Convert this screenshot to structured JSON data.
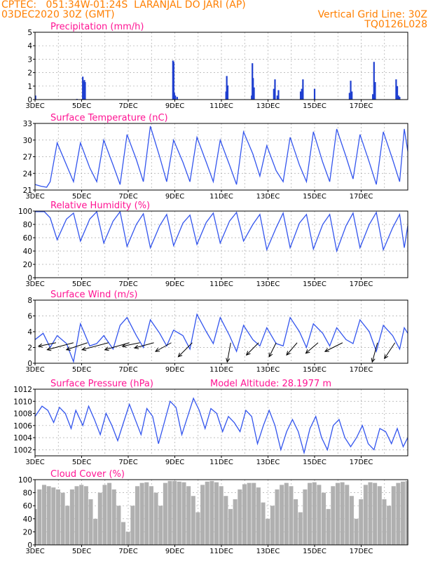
{
  "header": {
    "line1_left": "CPTEC:   051:34W-01:24S  LARANJAL DO JARI (AP)",
    "line2_left": "03DEC2020 30Z (GMT)",
    "line2_right": "Vertical Grid Line: 30Z",
    "line3_right": "TQ0126L028"
  },
  "colors": {
    "header": "#ff7f00",
    "panel_title": "#ff1493",
    "line": "#3355ee",
    "precip_bar": "#1f3fd0",
    "wind_arrow": "#000000",
    "cloud_fill": "#b0b0b0",
    "grid": "#aaaaaa"
  },
  "chart_data": [
    {
      "id": "precipitation",
      "type": "bar",
      "title": "Precipitation (mm/h)",
      "ylim": [
        0,
        5
      ],
      "yticks": [
        0,
        1,
        2,
        3,
        4,
        5
      ],
      "xlim": [
        0,
        16
      ],
      "xtick_labels": [
        "3DEC",
        "5DEC",
        "7DEC",
        "9DEC",
        "11DEC",
        "13DEC",
        "15DEC",
        "17DEC"
      ],
      "x": [
        0.02,
        1.8,
        2.05,
        2.08,
        2.12,
        2.15,
        5.92,
        5.95,
        5.98,
        6.02,
        6.1,
        8.2,
        8.23,
        8.27,
        9.3,
        9.33,
        9.36,
        9.4,
        10.25,
        10.3,
        10.4,
        10.45,
        11.4,
        11.45,
        11.5,
        12.0,
        13.5,
        13.55,
        13.6,
        14.5,
        14.55,
        14.6,
        15.5,
        15.55,
        15.6,
        15.65
      ],
      "values": [
        0.3,
        0.05,
        1.7,
        1.35,
        1.45,
        1.3,
        2.9,
        2.8,
        0.5,
        0.3,
        0.2,
        0.6,
        1.75,
        1.05,
        0.3,
        2.7,
        1.6,
        0.9,
        0.8,
        1.5,
        0.3,
        0.7,
        0.6,
        0.8,
        1.5,
        0.8,
        0.5,
        1.4,
        0.6,
        0.4,
        2.8,
        1.3,
        1.5,
        1.0,
        0.3,
        0.2
      ]
    },
    {
      "id": "temperature",
      "type": "line",
      "title": "Surface Temperature (nC)",
      "ylim": [
        21,
        33
      ],
      "yticks": [
        21,
        24,
        27,
        30,
        33
      ],
      "xlim": [
        0,
        16
      ],
      "xtick_labels": [
        "3DEC",
        "5DEC",
        "7DEC",
        "9DEC",
        "11DEC",
        "13DEC",
        "15DEC",
        "17DEC"
      ],
      "x": [
        0,
        0.25,
        0.5,
        0.65,
        0.95,
        1.35,
        1.65,
        1.95,
        2.35,
        2.65,
        2.95,
        3.35,
        3.65,
        3.95,
        4.35,
        4.65,
        4.95,
        5.35,
        5.65,
        5.95,
        6.35,
        6.65,
        6.95,
        7.35,
        7.65,
        7.95,
        8.35,
        8.65,
        8.95,
        9.35,
        9.65,
        9.95,
        10.35,
        10.65,
        10.95,
        11.35,
        11.65,
        11.95,
        12.35,
        12.65,
        12.95,
        13.35,
        13.65,
        13.95,
        14.35,
        14.65,
        14.95,
        15.35,
        15.65,
        15.85,
        16
      ],
      "values": [
        22.0,
        21.7,
        21.5,
        22.5,
        29.5,
        25.5,
        22.5,
        29.5,
        25.0,
        22.5,
        30.0,
        25.5,
        22.0,
        31.0,
        26.5,
        22.5,
        32.5,
        27.0,
        22.5,
        30.0,
        26.0,
        22.5,
        30.5,
        26.0,
        22.5,
        30.0,
        25.5,
        22.0,
        31.5,
        27.5,
        23.5,
        29.0,
        24.5,
        22.5,
        30.5,
        25.5,
        22.5,
        31.5,
        26.0,
        22.5,
        32.0,
        27.0,
        23.0,
        31.0,
        26.0,
        22.0,
        31.5,
        26.5,
        22.5,
        32.0,
        28.0
      ]
    },
    {
      "id": "humidity",
      "type": "line",
      "title": "Relative Humidity (%)",
      "ylim": [
        0,
        100
      ],
      "yticks": [
        0,
        20,
        40,
        60,
        80,
        100
      ],
      "xlim": [
        0,
        16
      ],
      "xtick_labels": [
        "3DEC",
        "5DEC",
        "7DEC",
        "9DEC",
        "11DEC",
        "13DEC",
        "15DEC",
        "17DEC"
      ],
      "x": [
        0,
        0.4,
        0.65,
        0.95,
        1.35,
        1.65,
        1.95,
        2.35,
        2.65,
        2.95,
        3.35,
        3.65,
        3.95,
        4.35,
        4.65,
        4.95,
        5.35,
        5.65,
        5.95,
        6.35,
        6.65,
        6.95,
        7.35,
        7.65,
        7.95,
        8.35,
        8.65,
        8.95,
        9.35,
        9.65,
        9.95,
        10.35,
        10.65,
        10.95,
        11.35,
        11.65,
        11.95,
        12.35,
        12.65,
        12.95,
        13.35,
        13.65,
        13.95,
        14.35,
        14.65,
        14.95,
        15.35,
        15.65,
        15.85,
        16
      ],
      "values": [
        99,
        99,
        90,
        57,
        88,
        97,
        55,
        88,
        99,
        52,
        85,
        99,
        47,
        80,
        96,
        45,
        78,
        95,
        48,
        82,
        94,
        50,
        83,
        97,
        52,
        85,
        98,
        55,
        80,
        95,
        42,
        75,
        97,
        45,
        82,
        95,
        43,
        80,
        95,
        40,
        78,
        97,
        45,
        80,
        98,
        42,
        75,
        95,
        45,
        78
      ]
    },
    {
      "id": "wind",
      "type": "line",
      "title": "Surface Wind (m/s)",
      "ylim": [
        0,
        8
      ],
      "yticks": [
        0,
        2,
        4,
        6,
        8
      ],
      "xlim": [
        0,
        16
      ],
      "xtick_labels": [
        "3DEC",
        "5DEC",
        "7DEC",
        "9DEC",
        "11DEC",
        "13DEC",
        "15DEC",
        "17DEC"
      ],
      "x": [
        0,
        0.35,
        0.65,
        0.95,
        1.35,
        1.65,
        1.95,
        2.35,
        2.65,
        2.95,
        3.35,
        3.65,
        3.95,
        4.35,
        4.65,
        4.95,
        5.35,
        5.65,
        5.95,
        6.35,
        6.65,
        6.95,
        7.35,
        7.65,
        7.95,
        8.35,
        8.65,
        8.95,
        9.35,
        9.65,
        9.95,
        10.35,
        10.65,
        10.95,
        11.35,
        11.65,
        11.95,
        12.35,
        12.65,
        12.95,
        13.35,
        13.65,
        13.95,
        14.35,
        14.65,
        14.95,
        15.35,
        15.65,
        15.85,
        16
      ],
      "values": [
        3.0,
        3.8,
        2.0,
        3.5,
        2.5,
        0.2,
        5.0,
        2.2,
        2.5,
        3.5,
        1.8,
        4.8,
        5.8,
        3.5,
        2.0,
        5.5,
        3.8,
        2.2,
        4.2,
        3.5,
        1.8,
        6.2,
        4.0,
        2.5,
        5.8,
        3.5,
        1.5,
        4.8,
        3.0,
        2.2,
        4.5,
        2.5,
        2.2,
        5.8,
        4.0,
        2.0,
        5.0,
        3.8,
        2.2,
        4.5,
        3.0,
        2.5,
        5.5,
        4.0,
        1.5,
        4.8,
        3.5,
        1.8,
        4.5,
        3.8
      ],
      "arrows": [
        {
          "x": 0.9,
          "u": -0.5,
          "v": -0.1
        },
        {
          "x": 1.65,
          "u": -0.75,
          "v": -0.2
        },
        {
          "x": 2.25,
          "u": -0.6,
          "v": -0.2
        },
        {
          "x": 3.15,
          "u": -0.75,
          "v": -0.2
        },
        {
          "x": 4.05,
          "u": -0.7,
          "v": -0.2
        },
        {
          "x": 4.5,
          "u": -0.5,
          "v": -0.1
        },
        {
          "x": 5.1,
          "u": -0.55,
          "v": -0.15
        },
        {
          "x": 5.85,
          "u": -0.45,
          "v": -0.25
        },
        {
          "x": 6.75,
          "u": -0.4,
          "v": -0.4
        },
        {
          "x": 8.4,
          "u": -0.1,
          "v": -0.55
        },
        {
          "x": 9.6,
          "u": -0.35,
          "v": -0.35
        },
        {
          "x": 10.35,
          "u": -0.2,
          "v": -0.4
        },
        {
          "x": 11.25,
          "u": -0.3,
          "v": -0.35
        },
        {
          "x": 12.15,
          "u": -0.35,
          "v": -0.3
        },
        {
          "x": 13.2,
          "u": -0.5,
          "v": -0.25
        },
        {
          "x": 14.7,
          "u": -0.15,
          "v": -0.55
        },
        {
          "x": 15.45,
          "u": -0.3,
          "v": -0.45
        }
      ]
    },
    {
      "id": "pressure",
      "type": "line",
      "title": "Surface Pressure (hPa)",
      "subtitle": "Model Altitude: 28.1977 m",
      "ylim": [
        1001,
        1012
      ],
      "yticks": [
        1002,
        1004,
        1006,
        1008,
        1010,
        1012
      ],
      "xlim": [
        0,
        16
      ],
      "xtick_labels": [
        "3DEC",
        "5DEC",
        "7DEC",
        "9DEC",
        "11DEC",
        "13DEC",
        "15DEC",
        "17DEC"
      ],
      "x": [
        0,
        0.3,
        0.55,
        0.8,
        1.05,
        1.3,
        1.55,
        1.75,
        2.05,
        2.3,
        2.55,
        2.8,
        3.05,
        3.3,
        3.55,
        3.8,
        4.05,
        4.3,
        4.55,
        4.8,
        5.05,
        5.3,
        5.55,
        5.8,
        6.05,
        6.3,
        6.55,
        6.8,
        7.05,
        7.3,
        7.55,
        7.8,
        8.05,
        8.3,
        8.55,
        8.8,
        9.05,
        9.3,
        9.55,
        9.8,
        10.05,
        10.3,
        10.55,
        10.8,
        11.05,
        11.3,
        11.55,
        11.8,
        12.05,
        12.3,
        12.55,
        12.8,
        13.05,
        13.3,
        13.55,
        13.8,
        14.05,
        14.3,
        14.55,
        14.8,
        15.05,
        15.3,
        15.55,
        15.8,
        16
      ],
      "values": [
        1007.5,
        1009.2,
        1008.5,
        1006.5,
        1009.0,
        1008.0,
        1005.5,
        1008.5,
        1006.0,
        1009.2,
        1007.0,
        1004.5,
        1008.0,
        1006.0,
        1003.5,
        1006.5,
        1009.5,
        1007.0,
        1004.5,
        1008.8,
        1007.5,
        1003.0,
        1006.5,
        1010.0,
        1009.0,
        1004.5,
        1007.5,
        1010.5,
        1008.5,
        1005.5,
        1008.8,
        1008.0,
        1005.0,
        1007.5,
        1006.5,
        1005.0,
        1008.5,
        1007.5,
        1003.0,
        1006.0,
        1008.5,
        1006.0,
        1002.0,
        1005.0,
        1007.0,
        1005.0,
        1001.5,
        1005.5,
        1007.5,
        1004.0,
        1002.0,
        1006.0,
        1007.0,
        1004.0,
        1002.5,
        1004.0,
        1006.0,
        1003.0,
        1002.0,
        1005.5,
        1005.0,
        1003.0,
        1005.5,
        1002.5,
        1004.0
      ]
    },
    {
      "id": "cloud",
      "type": "area",
      "title": "Cloud Cover (%)",
      "ylim": [
        0,
        100
      ],
      "yticks": [
        0,
        20,
        40,
        60,
        80,
        100
      ],
      "xlim": [
        0,
        16
      ],
      "xtick_labels": [
        "3DEC",
        "5DEC",
        "7DEC",
        "9DEC",
        "11DEC",
        "13DEC",
        "15DEC",
        "17DEC"
      ],
      "x": [
        0,
        0.1,
        0.3,
        0.5,
        0.7,
        0.9,
        1.1,
        1.3,
        1.5,
        1.7,
        1.9,
        2.1,
        2.3,
        2.5,
        2.7,
        2.9,
        3.1,
        3.3,
        3.5,
        3.7,
        3.9,
        4.1,
        4.3,
        4.5,
        4.7,
        4.9,
        5.1,
        5.3,
        5.5,
        5.7,
        5.9,
        6.1,
        6.3,
        6.5,
        6.7,
        6.9,
        7.1,
        7.3,
        7.5,
        7.7,
        7.9,
        8.1,
        8.3,
        8.5,
        8.7,
        8.9,
        9.1,
        9.3,
        9.5,
        9.7,
        9.9,
        10.1,
        10.3,
        10.5,
        10.7,
        10.9,
        11.1,
        11.3,
        11.5,
        11.7,
        11.9,
        12.1,
        12.3,
        12.5,
        12.7,
        12.9,
        13.1,
        13.3,
        13.5,
        13.7,
        13.9,
        14.1,
        14.3,
        14.5,
        14.7,
        14.9,
        15.1,
        15.3,
        15.5,
        15.7,
        15.9,
        16
      ],
      "values": [
        55,
        85,
        92,
        90,
        88,
        85,
        80,
        60,
        85,
        90,
        92,
        90,
        70,
        40,
        80,
        92,
        95,
        85,
        60,
        35,
        20,
        60,
        90,
        95,
        96,
        90,
        80,
        60,
        95,
        98,
        98,
        97,
        96,
        90,
        75,
        50,
        92,
        97,
        98,
        96,
        90,
        75,
        55,
        70,
        85,
        93,
        95,
        95,
        88,
        65,
        40,
        60,
        85,
        92,
        95,
        90,
        70,
        50,
        85,
        95,
        96,
        92,
        80,
        55,
        90,
        95,
        96,
        92,
        75,
        40,
        70,
        92,
        96,
        95,
        90,
        70,
        60,
        90,
        95,
        97,
        98,
        98
      ]
    }
  ]
}
